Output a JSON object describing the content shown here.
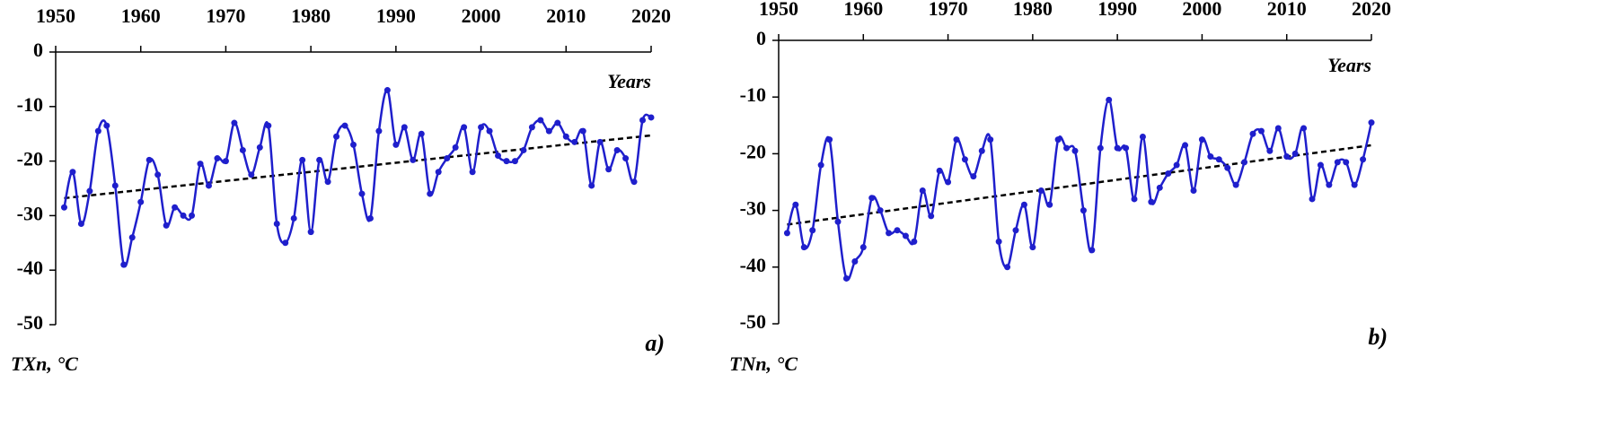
{
  "chart_data": [
    {
      "type": "line",
      "xlabel": "Years",
      "ylabel": "TXn, °C",
      "panel_label": "a)",
      "x": [
        1951,
        1952,
        1953,
        1954,
        1955,
        1956,
        1957,
        1958,
        1959,
        1960,
        1961,
        1962,
        1963,
        1964,
        1965,
        1966,
        1967,
        1968,
        1969,
        1970,
        1971,
        1972,
        1973,
        1974,
        1975,
        1976,
        1977,
        1978,
        1979,
        1980,
        1981,
        1982,
        1983,
        1984,
        1985,
        1986,
        1987,
        1988,
        1989,
        1990,
        1991,
        1992,
        1993,
        1994,
        1995,
        1996,
        1997,
        1998,
        1999,
        2000,
        2001,
        2002,
        2003,
        2004,
        2005,
        2006,
        2007,
        2008,
        2009,
        2010,
        2011,
        2012,
        2013,
        2014,
        2015,
        2016,
        2017,
        2018,
        2019,
        2020
      ],
      "series": [
        {
          "color": "#1f1fcc",
          "values": [
            -28.5,
            -22,
            -31.5,
            -25.5,
            -14.5,
            -13.5,
            -24.5,
            -39,
            -34,
            -27.5,
            -19.8,
            -22.5,
            -31.8,
            -28.5,
            -30,
            -30,
            -20.5,
            -24.5,
            -19.5,
            -20,
            -13,
            -18,
            -22.5,
            -17.5,
            -13.5,
            -31.5,
            -35,
            -30.5,
            -19.8,
            -33,
            -19.8,
            -23.8,
            -15.5,
            -13.5,
            -17,
            -26,
            -30.5,
            -14.5,
            -7,
            -17,
            -13.8,
            -19.8,
            -15,
            -26,
            -22,
            -19.5,
            -17.5,
            -13.8,
            -22,
            -13.8,
            -14.5,
            -19,
            -20,
            -20,
            -18,
            -13.8,
            -12.5,
            -14.5,
            -13,
            -15.5,
            -16.5,
            -14.5,
            -24.5,
            -16.5,
            -21.5,
            -18,
            -19.5,
            -23.8,
            -12.5,
            -12
          ]
        }
      ],
      "trend": {
        "color": "#000000",
        "x": [
          1951,
          2020
        ],
        "values": [
          -26.8,
          -15.3
        ]
      },
      "xlim": [
        1950,
        2020
      ],
      "xticks": [
        1950,
        1960,
        1970,
        1980,
        1990,
        2000,
        2010,
        2020
      ],
      "ylim": [
        -50,
        0
      ],
      "yticks": [
        0,
        -10,
        -20,
        -30,
        -40,
        -50
      ]
    },
    {
      "type": "line",
      "xlabel": "Years",
      "ylabel": "TNn, °C",
      "panel_label": "b)",
      "x": [
        1951,
        1952,
        1953,
        1954,
        1955,
        1956,
        1957,
        1958,
        1959,
        1960,
        1961,
        1962,
        1963,
        1964,
        1965,
        1966,
        1967,
        1968,
        1969,
        1970,
        1971,
        1972,
        1973,
        1974,
        1975,
        1976,
        1977,
        1978,
        1979,
        1980,
        1981,
        1982,
        1983,
        1984,
        1985,
        1986,
        1987,
        1988,
        1989,
        1990,
        1991,
        1992,
        1993,
        1994,
        1995,
        1996,
        1997,
        1998,
        1999,
        2000,
        2001,
        2002,
        2003,
        2004,
        2005,
        2006,
        2007,
        2008,
        2009,
        2010,
        2011,
        2012,
        2013,
        2014,
        2015,
        2016,
        2017,
        2018,
        2019,
        2020
      ],
      "series": [
        {
          "color": "#1f1fcc",
          "values": [
            -34,
            -29,
            -36.5,
            -33.5,
            -22,
            -17.5,
            -32,
            -42,
            -39,
            -36.5,
            -27.8,
            -30,
            -34,
            -33.5,
            -34.5,
            -35.5,
            -26.5,
            -31,
            -23,
            -25,
            -17.5,
            -21,
            -24,
            -19.5,
            -17.5,
            -35.5,
            -40,
            -33.5,
            -29,
            -36.5,
            -26.5,
            -29,
            -17.5,
            -19,
            -19.5,
            -30,
            -37,
            -19,
            -10.5,
            -19,
            -19,
            -28,
            -17,
            -28.5,
            -26,
            -23.5,
            -22,
            -18.5,
            -26.5,
            -17.5,
            -20.5,
            -21,
            -22.5,
            -25.5,
            -21.5,
            -16.5,
            -16,
            -19.5,
            -15.5,
            -20.5,
            -20,
            -15.5,
            -28,
            -22,
            -25.5,
            -21.5,
            -21.5,
            -25.5,
            -21,
            -14.5
          ]
        }
      ],
      "trend": {
        "color": "#000000",
        "x": [
          1951,
          2020
        ],
        "values": [
          -32.5,
          -18.5
        ]
      },
      "xlim": [
        1950,
        2020
      ],
      "xticks": [
        1950,
        1960,
        1970,
        1980,
        1990,
        2000,
        2010,
        2020
      ],
      "ylim": [
        -50,
        0
      ],
      "yticks": [
        0,
        -10,
        -20,
        -30,
        -40,
        -50
      ]
    }
  ]
}
